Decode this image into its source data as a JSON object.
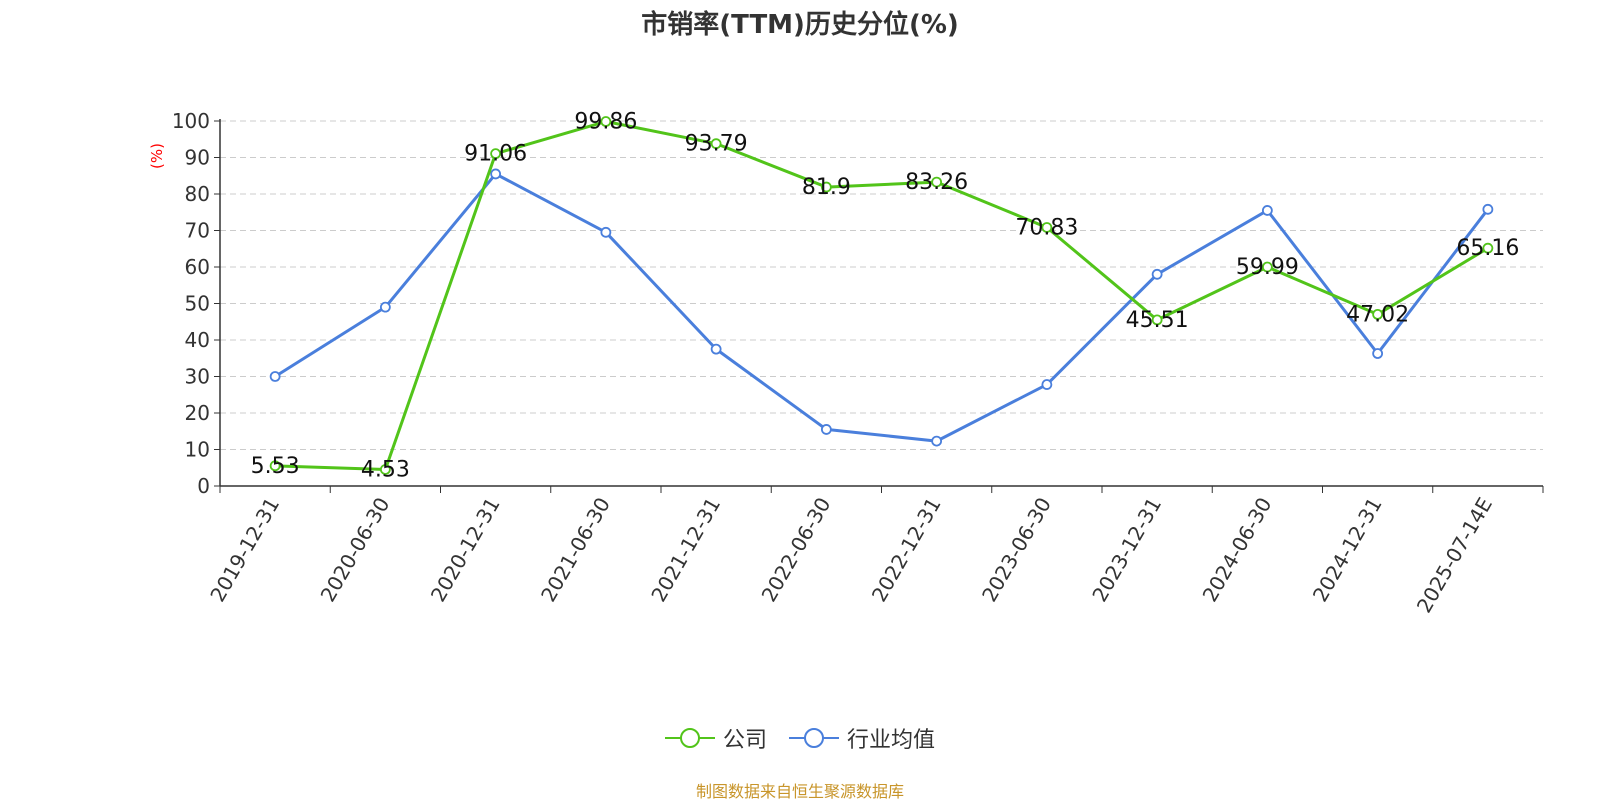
{
  "chart_data": {
    "type": "line",
    "title": "市销率(TTM)历史分位(%)",
    "ylabel": "(%)",
    "ylim": [
      0,
      100
    ],
    "yticks": [
      0,
      10,
      20,
      30,
      40,
      50,
      60,
      70,
      80,
      90,
      100
    ],
    "categories": [
      "2019-12-31",
      "2020-06-30",
      "2020-12-31",
      "2021-06-30",
      "2021-12-31",
      "2022-06-30",
      "2022-12-31",
      "2023-06-30",
      "2023-12-31",
      "2024-06-30",
      "2024-12-31",
      "2025-07-14E"
    ],
    "series": [
      {
        "name": "公司",
        "color": "#52c41a",
        "labeled": true,
        "values": [
          5.53,
          4.53,
          91.06,
          99.86,
          93.79,
          81.9,
          83.26,
          70.83,
          45.51,
          59.99,
          47.02,
          65.16
        ]
      },
      {
        "name": "行业均值",
        "color": "#4a7fdc",
        "labeled": false,
        "values": [
          30,
          49,
          85.5,
          69.5,
          37.5,
          15.5,
          12.3,
          27.8,
          58,
          75.5,
          36.3,
          75.8
        ]
      }
    ],
    "grid": true,
    "legend_position": "bottom-center"
  },
  "source_note": "制图数据来自恒生聚源数据库",
  "colors": {
    "axis": "#333333",
    "grid": "#cccccc",
    "ylabel": "#ff0000",
    "source": "#c8952a"
  }
}
